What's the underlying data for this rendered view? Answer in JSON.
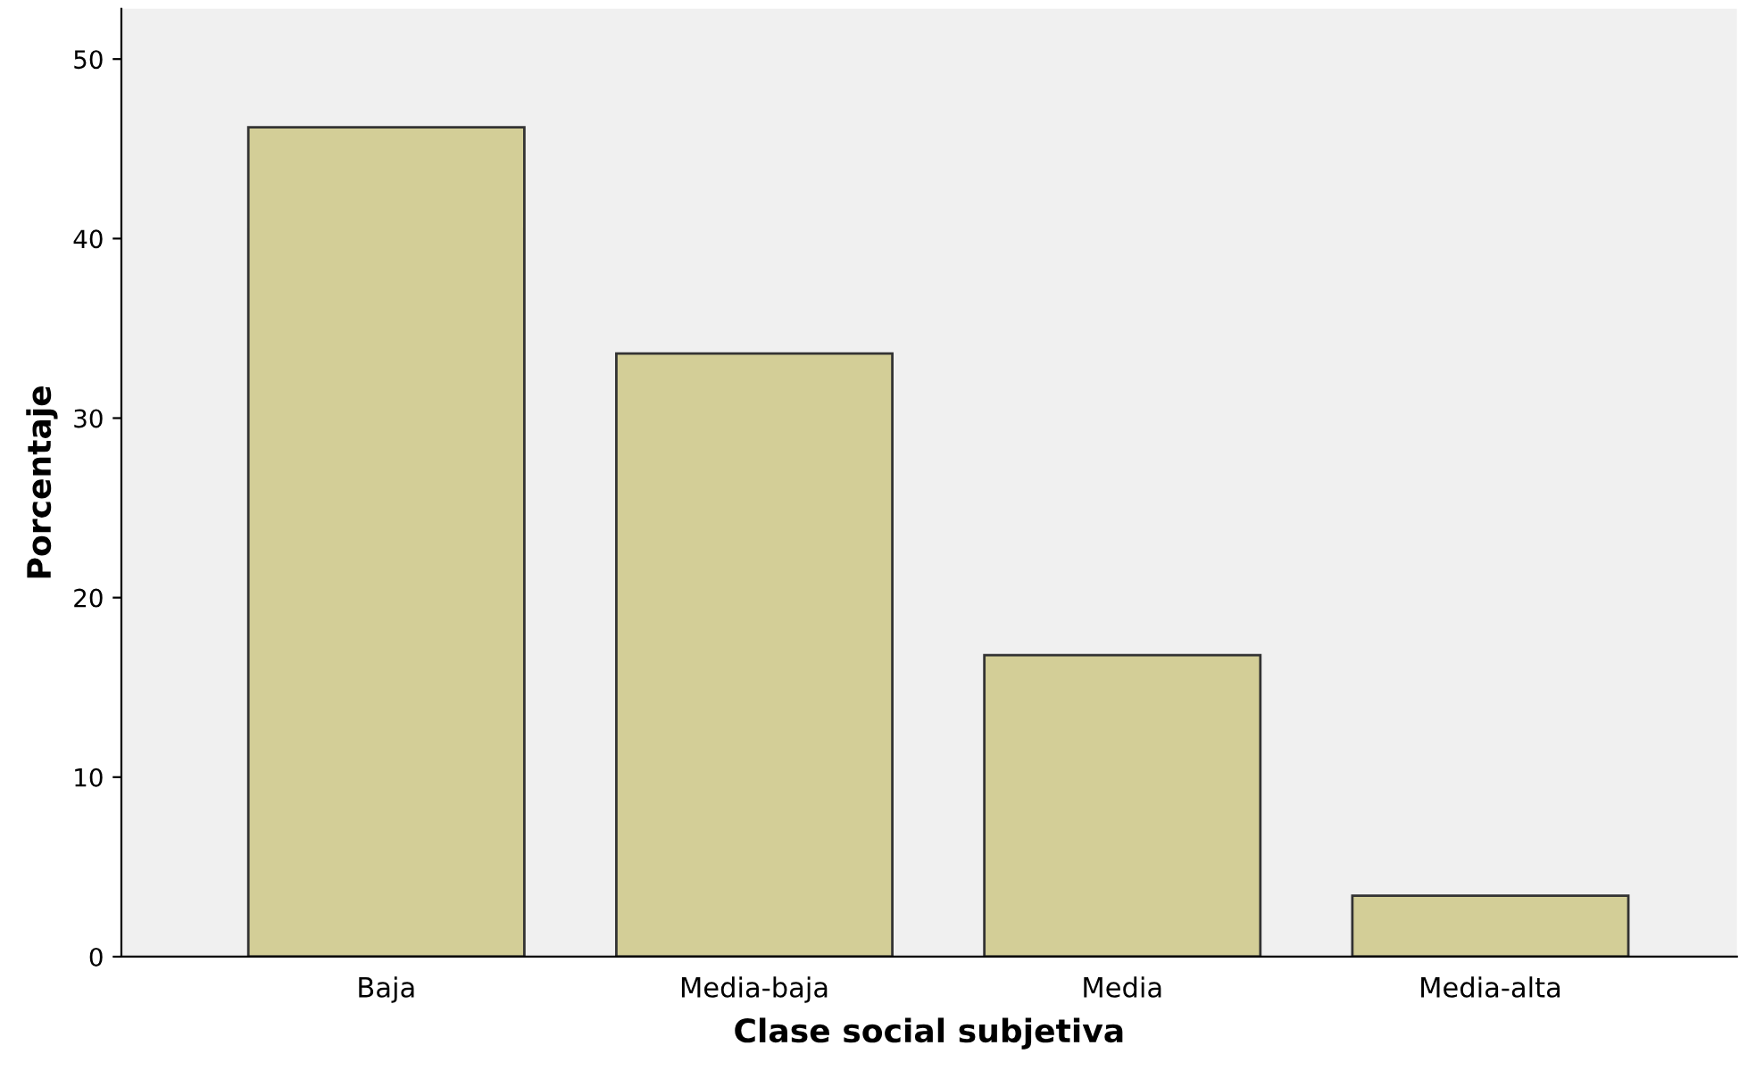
{
  "chart_data": {
    "type": "bar",
    "xlabel": "Clase social subjetiva",
    "ylabel": "Porcentaje",
    "categories": [
      "Baja",
      "Media-baja",
      "Media",
      "Media-alta"
    ],
    "values": [
      46.2,
      33.6,
      16.8,
      3.4
    ],
    "color": "#d3ce97",
    "ylim": [
      0,
      52.8
    ],
    "yticks": [
      0,
      10,
      20,
      30,
      40,
      50
    ],
    "grid": false,
    "legend": false
  }
}
